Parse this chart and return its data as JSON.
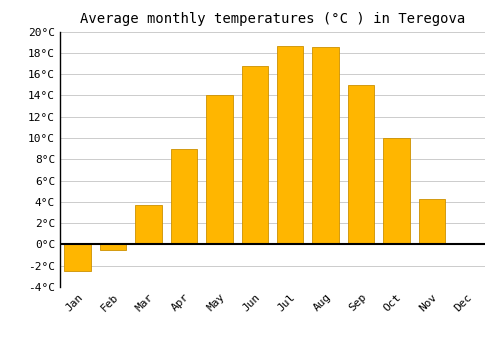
{
  "title": "Average monthly temperatures (°C ) in Teregova",
  "months": [
    "Jan",
    "Feb",
    "Mar",
    "Apr",
    "May",
    "Jun",
    "Jul",
    "Aug",
    "Sep",
    "Oct",
    "Nov",
    "Dec"
  ],
  "values": [
    -2.5,
    -0.5,
    3.7,
    9.0,
    14.0,
    16.8,
    18.6,
    18.5,
    15.0,
    10.0,
    4.3,
    0.0
  ],
  "bar_color": "#FFB600",
  "bar_edge_color": "#CC9000",
  "background_color": "#ffffff",
  "grid_color": "#cccccc",
  "ylim": [
    -4,
    20
  ],
  "yticks": [
    -4,
    -2,
    0,
    2,
    4,
    6,
    8,
    10,
    12,
    14,
    16,
    18,
    20
  ],
  "title_fontsize": 10,
  "tick_fontsize": 8,
  "zero_line_color": "#000000",
  "left_spine_color": "#000000"
}
